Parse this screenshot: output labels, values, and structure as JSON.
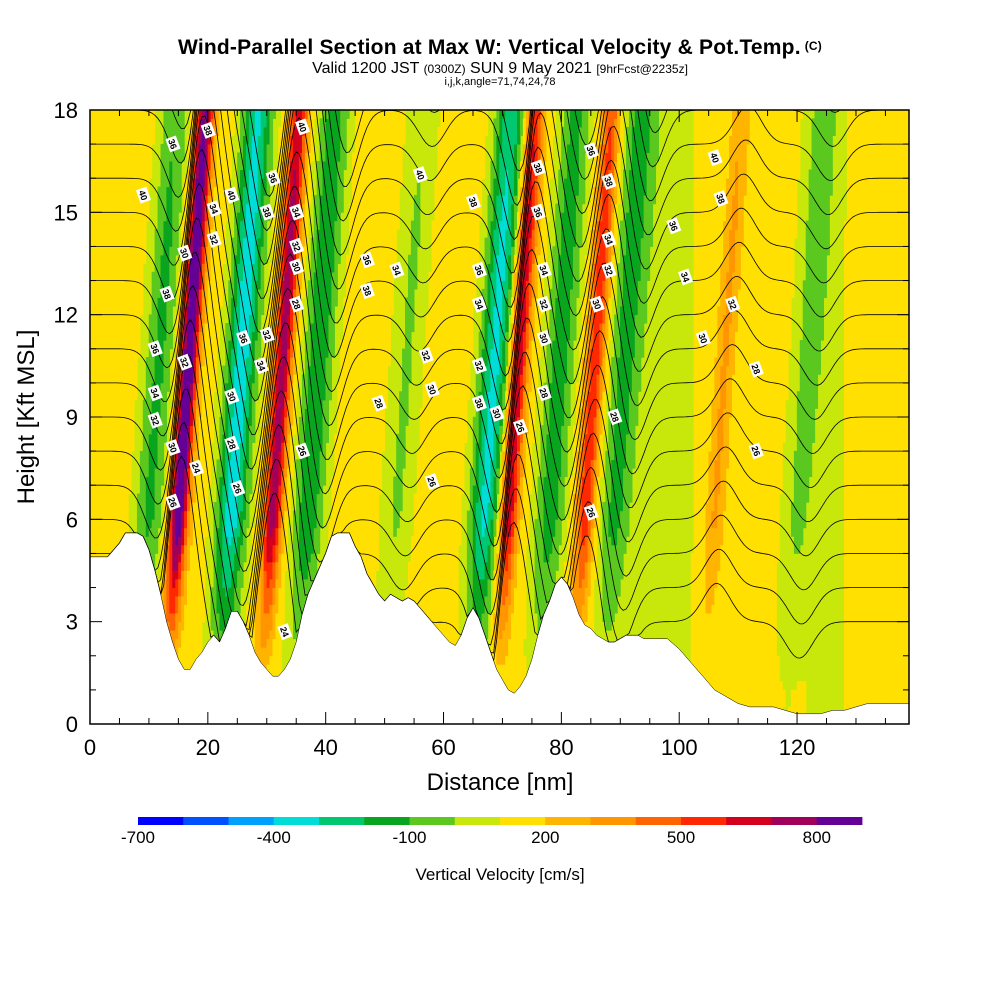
{
  "header": {
    "title": "Wind-Parallel Section at Max W: Vertical Velocity & Pot.Temp.",
    "title_mark": "(C)",
    "subtitle_main_1": "Valid 1200 JST",
    "subtitle_small_1": "(0300Z)",
    "subtitle_main_2": "SUN 9 May 2021",
    "subtitle_small_2": "[9hrFcst@2235z]",
    "subtitle2": "i,j,k,angle=71,74,24,78"
  },
  "chart_data": {
    "type": "heatmap",
    "xlabel": "Distance [nm]",
    "ylabel": "Height [Kft MSL]",
    "xlim": [
      0,
      139
    ],
    "ylim": [
      0,
      18
    ],
    "xticks": [
      0,
      20,
      40,
      60,
      80,
      100,
      120
    ],
    "yticks": [
      0,
      3,
      6,
      9,
      12,
      15,
      18
    ],
    "xminor_step": 5,
    "yminor_step": 1,
    "background_color": "#c8e80c",
    "colorbar": {
      "title": "Vertical Velocity [cm/s]",
      "tick_labels": [
        "-700",
        "-400",
        "-100",
        "200",
        "500",
        "800"
      ],
      "colors": [
        "#0000ff",
        "#0050ff",
        "#00a0ff",
        "#00dcd8",
        "#00c870",
        "#0aa51e",
        "#5ac81e",
        "#c8e80c",
        "#ffe000",
        "#ffb400",
        "#ff9600",
        "#ff6400",
        "#ff2800",
        "#d2001e",
        "#a0005a",
        "#640096"
      ]
    },
    "terrain_profile": {
      "x": [
        0,
        3,
        5,
        6,
        7,
        8,
        9,
        10,
        11,
        12,
        13,
        14,
        15,
        16,
        17,
        18,
        19,
        20,
        21,
        22,
        23,
        24,
        25,
        26,
        27,
        28,
        29,
        30,
        31,
        32,
        33,
        34,
        35,
        36,
        37,
        38,
        39,
        40,
        41,
        42,
        43,
        44,
        45,
        46,
        47,
        48,
        49,
        50,
        51,
        52,
        53,
        54,
        55,
        56,
        57,
        58,
        59,
        60,
        61,
        62,
        63,
        64,
        65,
        66,
        67,
        68,
        69,
        70,
        71,
        72,
        73,
        74,
        75,
        76,
        77,
        78,
        79,
        80,
        81,
        82,
        83,
        84,
        85,
        86,
        87,
        88,
        89,
        90,
        91,
        92,
        93,
        94,
        95,
        96,
        97,
        98,
        100,
        102,
        104,
        106,
        108,
        110,
        112,
        114,
        116,
        118,
        120,
        122,
        124,
        126,
        128,
        130,
        132,
        134,
        136,
        139
      ],
      "z_kft": [
        4.9,
        4.9,
        5.3,
        5.6,
        5.6,
        5.6,
        5.5,
        5.1,
        4.5,
        3.8,
        3.0,
        2.4,
        1.9,
        1.6,
        1.6,
        1.9,
        2.1,
        2.4,
        2.6,
        2.4,
        2.8,
        3.3,
        3.3,
        3.0,
        2.6,
        2.1,
        1.8,
        1.6,
        1.4,
        1.4,
        1.6,
        1.9,
        2.4,
        3.2,
        3.8,
        4.2,
        4.6,
        5.0,
        5.5,
        5.6,
        5.6,
        5.6,
        5.2,
        4.9,
        4.4,
        4.1,
        3.8,
        3.6,
        3.8,
        3.7,
        3.6,
        3.7,
        3.6,
        3.4,
        3.2,
        3.0,
        2.8,
        2.6,
        2.4,
        2.3,
        2.6,
        3.1,
        3.4,
        3.1,
        2.6,
        2.1,
        1.6,
        1.3,
        1.0,
        0.9,
        1.1,
        1.4,
        1.9,
        2.6,
        3.2,
        3.6,
        4.1,
        4.3,
        4.1,
        3.7,
        3.2,
        2.9,
        2.8,
        2.6,
        2.5,
        2.4,
        2.4,
        2.5,
        2.6,
        2.6,
        2.6,
        2.5,
        2.5,
        2.5,
        2.5,
        2.5,
        2.2,
        1.8,
        1.4,
        1.0,
        0.8,
        0.6,
        0.5,
        0.5,
        0.5,
        0.4,
        0.3,
        0.3,
        0.3,
        0.4,
        0.4,
        0.5,
        0.6,
        0.6,
        0.6,
        0.6
      ]
    },
    "updrafts": [
      {
        "x_center": 15,
        "w_peak": 800
      },
      {
        "x_center": 31,
        "w_peak": 620
      },
      {
        "x_center": 71,
        "w_peak": 560
      },
      {
        "x_center": 84,
        "w_peak": 440
      },
      {
        "x_center": 106,
        "w_peak": 180
      }
    ],
    "downdrafts": [
      {
        "x_center": 10,
        "w_min": -260
      },
      {
        "x_center": 24,
        "w_min": -500
      },
      {
        "x_center": 37,
        "w_min": -330
      },
      {
        "x_center": 52,
        "w_min": -150
      },
      {
        "x_center": 67,
        "w_min": -470
      },
      {
        "x_center": 78,
        "w_min": -300
      },
      {
        "x_center": 89,
        "w_min": -260
      },
      {
        "x_center": 120,
        "w_min": -150
      }
    ],
    "theta_contours": {
      "interval": 1,
      "range": [
        24,
        40
      ],
      "labels": [
        {
          "x": 9,
          "y": 15.5,
          "text": "40"
        },
        {
          "x": 11,
          "y": 11.0,
          "text": "36"
        },
        {
          "x": 11,
          "y": 9.7,
          "text": "34"
        },
        {
          "x": 11,
          "y": 8.9,
          "text": "32"
        },
        {
          "x": 14,
          "y": 17.0,
          "text": "36"
        },
        {
          "x": 13,
          "y": 12.6,
          "text": "38"
        },
        {
          "x": 16,
          "y": 13.8,
          "text": "30"
        },
        {
          "x": 16,
          "y": 10.6,
          "text": "32"
        },
        {
          "x": 14,
          "y": 8.1,
          "text": "30"
        },
        {
          "x": 18,
          "y": 7.5,
          "text": "24"
        },
        {
          "x": 14,
          "y": 6.5,
          "text": "26"
        },
        {
          "x": 20,
          "y": 17.4,
          "text": "38"
        },
        {
          "x": 21,
          "y": 15.1,
          "text": "34"
        },
        {
          "x": 21,
          "y": 14.2,
          "text": "32"
        },
        {
          "x": 24,
          "y": 15.5,
          "text": "40"
        },
        {
          "x": 26,
          "y": 11.3,
          "text": "36"
        },
        {
          "x": 24,
          "y": 9.6,
          "text": "30"
        },
        {
          "x": 24,
          "y": 8.2,
          "text": "28"
        },
        {
          "x": 25,
          "y": 6.9,
          "text": "26"
        },
        {
          "x": 31,
          "y": 16.0,
          "text": "36"
        },
        {
          "x": 30,
          "y": 15.0,
          "text": "38"
        },
        {
          "x": 36,
          "y": 17.5,
          "text": "40"
        },
        {
          "x": 35,
          "y": 15.0,
          "text": "34"
        },
        {
          "x": 35,
          "y": 14.0,
          "text": "32"
        },
        {
          "x": 35,
          "y": 13.4,
          "text": "30"
        },
        {
          "x": 35,
          "y": 12.3,
          "text": "28"
        },
        {
          "x": 30,
          "y": 11.4,
          "text": "32"
        },
        {
          "x": 29,
          "y": 10.5,
          "text": "34"
        },
        {
          "x": 36,
          "y": 8.0,
          "text": "26"
        },
        {
          "x": 33,
          "y": 2.7,
          "text": "24"
        },
        {
          "x": 56,
          "y": 16.1,
          "text": "40"
        },
        {
          "x": 47,
          "y": 13.6,
          "text": "36"
        },
        {
          "x": 52,
          "y": 13.3,
          "text": "34"
        },
        {
          "x": 47,
          "y": 12.7,
          "text": "38"
        },
        {
          "x": 49,
          "y": 9.4,
          "text": "28"
        },
        {
          "x": 57,
          "y": 10.8,
          "text": "32"
        },
        {
          "x": 58,
          "y": 9.8,
          "text": "30"
        },
        {
          "x": 58,
          "y": 7.1,
          "text": "26"
        },
        {
          "x": 65,
          "y": 15.3,
          "text": "38"
        },
        {
          "x": 66,
          "y": 13.3,
          "text": "36"
        },
        {
          "x": 66,
          "y": 12.3,
          "text": "34"
        },
        {
          "x": 66,
          "y": 10.5,
          "text": "32"
        },
        {
          "x": 66,
          "y": 9.4,
          "text": "38"
        },
        {
          "x": 69,
          "y": 9.1,
          "text": "30"
        },
        {
          "x": 73,
          "y": 8.7,
          "text": "26"
        },
        {
          "x": 76,
          "y": 16.3,
          "text": "38"
        },
        {
          "x": 76,
          "y": 15.0,
          "text": "36"
        },
        {
          "x": 77,
          "y": 13.3,
          "text": "34"
        },
        {
          "x": 77,
          "y": 12.3,
          "text": "32"
        },
        {
          "x": 77,
          "y": 11.3,
          "text": "30"
        },
        {
          "x": 77,
          "y": 9.7,
          "text": "28"
        },
        {
          "x": 85,
          "y": 16.8,
          "text": "36"
        },
        {
          "x": 88,
          "y": 15.9,
          "text": "38"
        },
        {
          "x": 88,
          "y": 14.2,
          "text": "34"
        },
        {
          "x": 88,
          "y": 13.3,
          "text": "32"
        },
        {
          "x": 86,
          "y": 12.3,
          "text": "30"
        },
        {
          "x": 89,
          "y": 9.0,
          "text": "28"
        },
        {
          "x": 85,
          "y": 6.2,
          "text": "26"
        },
        {
          "x": 106,
          "y": 16.6,
          "text": "40"
        },
        {
          "x": 107,
          "y": 15.4,
          "text": "38"
        },
        {
          "x": 99,
          "y": 14.6,
          "text": "36"
        },
        {
          "x": 101,
          "y": 13.1,
          "text": "34"
        },
        {
          "x": 109,
          "y": 12.3,
          "text": "32"
        },
        {
          "x": 104,
          "y": 11.3,
          "text": "30"
        },
        {
          "x": 113,
          "y": 10.4,
          "text": "28"
        },
        {
          "x": 113,
          "y": 8.0,
          "text": "26"
        }
      ]
    }
  }
}
